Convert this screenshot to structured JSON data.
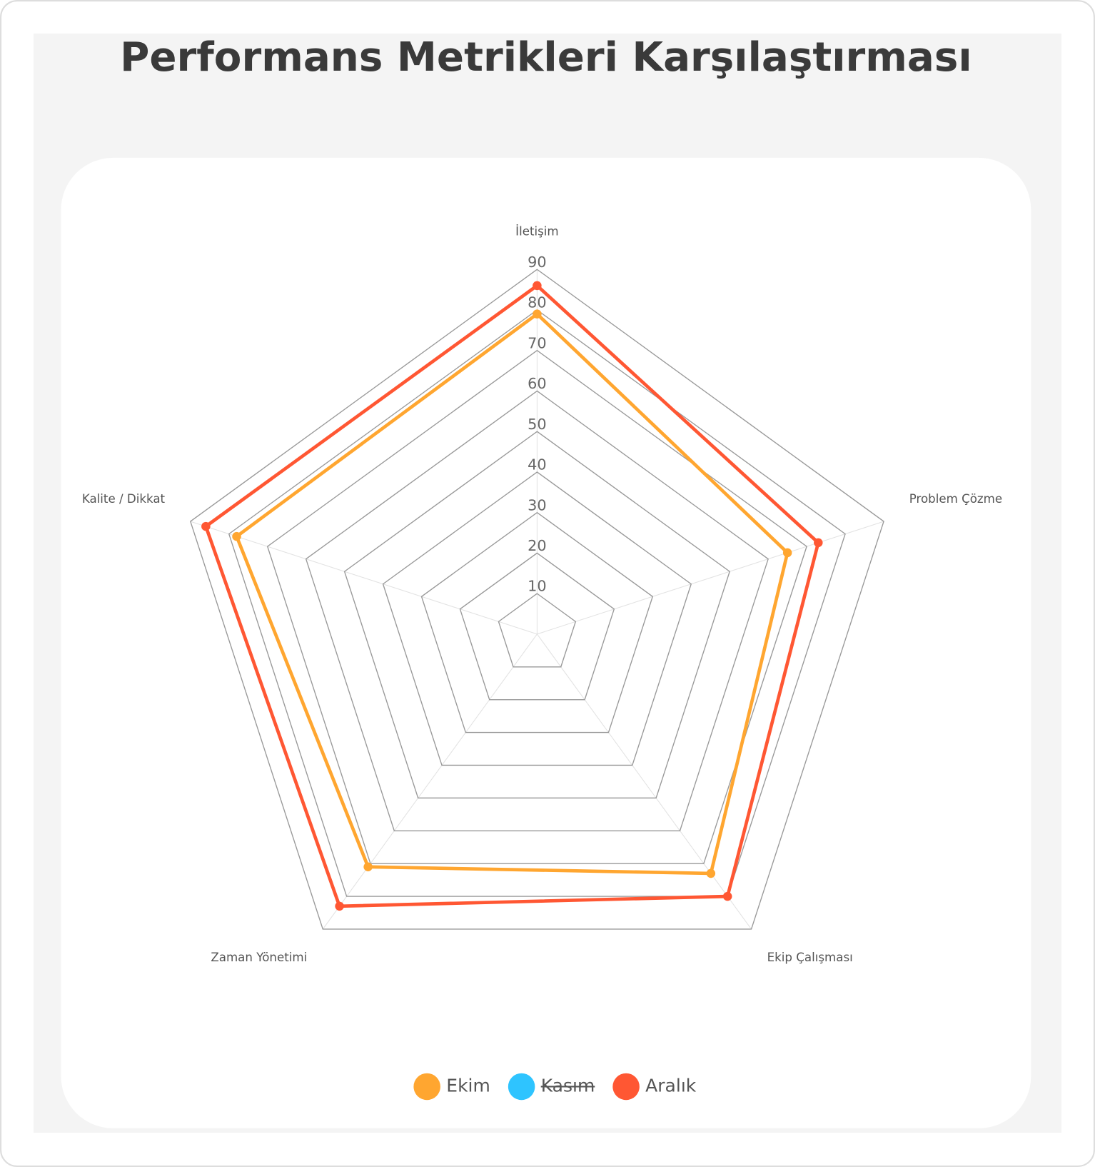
{
  "chart_data": {
    "type": "radar",
    "title": "Performans Metrikleri Karşılaştırması",
    "categories": [
      "İletişim",
      "Problem Çözme",
      "Ekip Çalışması",
      "Zaman Yönetimi",
      "Kalite / Dikkat"
    ],
    "series": [
      {
        "name": "Ekim",
        "color": "#ffa630",
        "values": [
          79,
          65,
          73,
          71,
          78
        ]
      },
      {
        "name": "Kasım",
        "color": "#2ec4ff",
        "values": [
          null,
          null,
          null,
          null,
          null
        ],
        "hidden": true
      },
      {
        "name": "Aralık",
        "color": "#ff5733",
        "values": [
          86,
          73,
          80,
          83,
          86
        ]
      }
    ],
    "rlim": [
      0,
      90
    ],
    "rticks": [
      10,
      20,
      30,
      40,
      50,
      60,
      70,
      80,
      90
    ],
    "grid": true,
    "legend": "bottom"
  }
}
